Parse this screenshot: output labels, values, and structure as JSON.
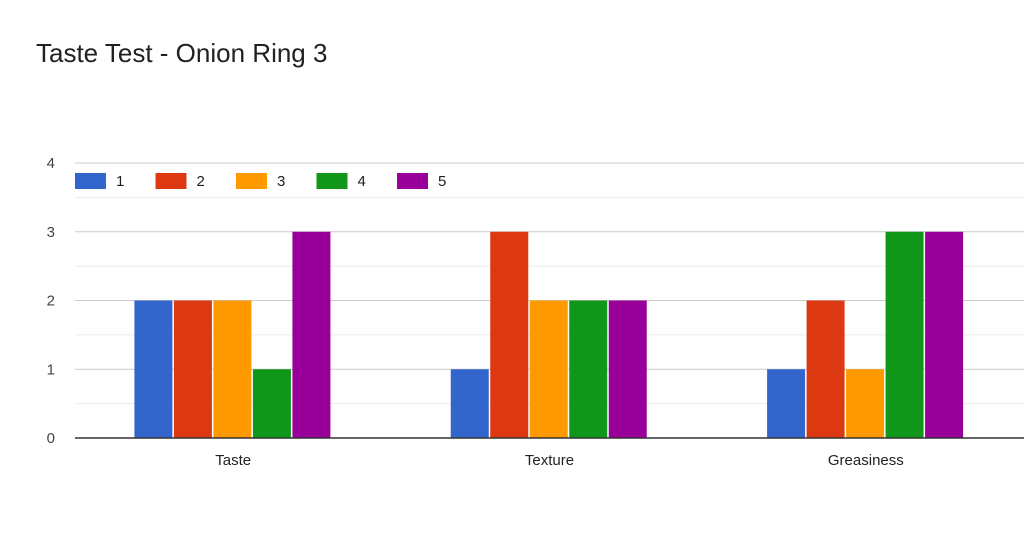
{
  "chart_data": {
    "type": "bar",
    "title": "Taste Test - Onion Ring 3",
    "xlabel": "",
    "ylabel": "",
    "categories": [
      "Taste",
      "Texture",
      "Greasiness"
    ],
    "ylim": [
      0,
      4
    ],
    "yticks": [
      0,
      1,
      2,
      3,
      4
    ],
    "grid": true,
    "legend_position": "top-left",
    "series": [
      {
        "name": "1",
        "color": "#3366cc",
        "values": [
          2,
          1,
          1
        ]
      },
      {
        "name": "2",
        "color": "#dc3912",
        "values": [
          2,
          3,
          2
        ]
      },
      {
        "name": "3",
        "color": "#ff9900",
        "values": [
          2,
          2,
          1
        ]
      },
      {
        "name": "4",
        "color": "#109618",
        "values": [
          1,
          2,
          3
        ]
      },
      {
        "name": "5",
        "color": "#990099",
        "values": [
          3,
          2,
          3
        ]
      }
    ]
  }
}
